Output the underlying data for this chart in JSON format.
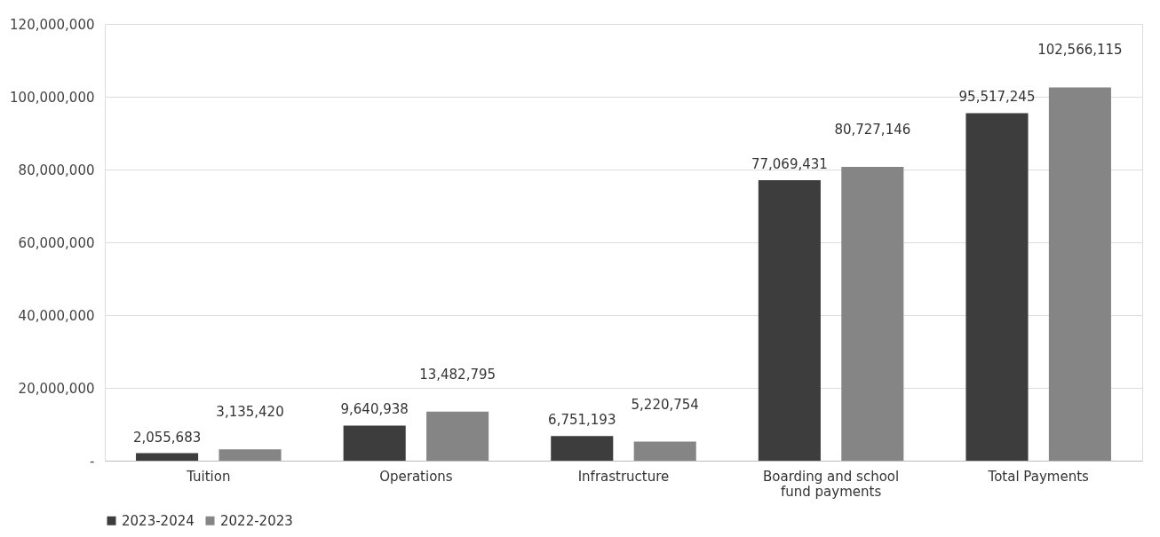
{
  "chart_data": {
    "type": "bar",
    "categories": [
      "Tuition",
      "Operations",
      "Infrastructure",
      "Boarding and school fund payments",
      "Total Payments"
    ],
    "series": [
      {
        "name": "2023-2024",
        "color": "#3d3d3d",
        "values": [
          2055683,
          9640938,
          6751193,
          77069431,
          95517245
        ],
        "value_labels": [
          "2,055,683",
          "9,640,938",
          "6,751,193",
          "77,069,431",
          "95,517,245"
        ]
      },
      {
        "name": "2022-2023",
        "color": "#858585",
        "values": [
          3135420,
          13482795,
          5220754,
          80727146,
          102566115
        ],
        "value_labels": [
          "3,135,420",
          "13,482,795",
          "5,220,754",
          "80,727,146",
          "102,566,115"
        ]
      }
    ],
    "ylim": [
      0,
      120000000
    ],
    "yticks": [
      {
        "value": 0,
        "label": "-"
      },
      {
        "value": 20000000,
        "label": "20,000,000"
      },
      {
        "value": 40000000,
        "label": "40,000,000"
      },
      {
        "value": 60000000,
        "label": "60,000,000"
      },
      {
        "value": 80000000,
        "label": "80,000,000"
      },
      {
        "value": 100000000,
        "label": "100,000,000"
      },
      {
        "value": 120000000,
        "label": "120,000,000"
      }
    ],
    "grid": "y",
    "legend": "bottom"
  }
}
